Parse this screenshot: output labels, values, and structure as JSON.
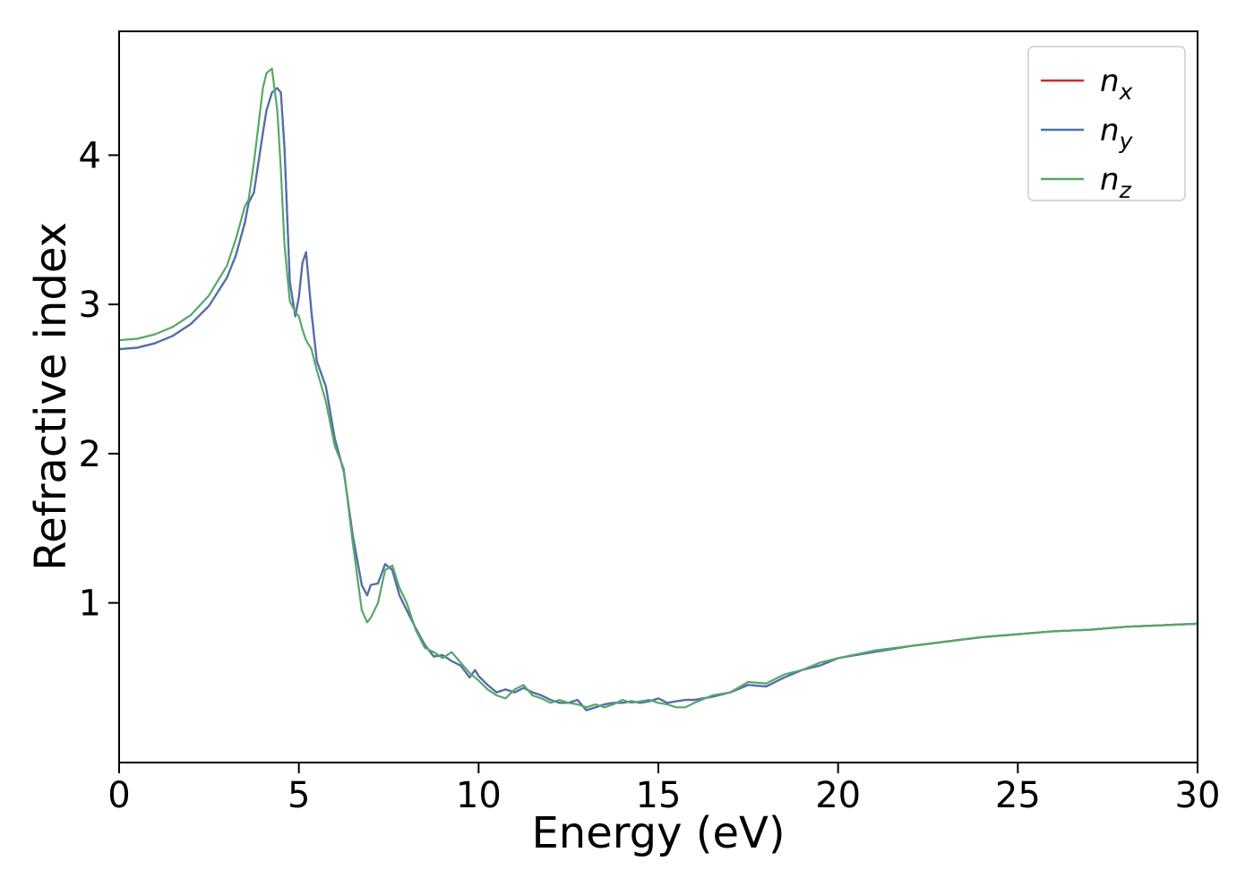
{
  "figure": {
    "background": "#ffffff",
    "spine_color": "#000000",
    "tick_label_color": "#000000"
  },
  "chart_data": {
    "type": "line",
    "title": "",
    "xlabel": "Energy (eV)",
    "ylabel": "Refractive index",
    "xlim": [
      0,
      30
    ],
    "ylim": [
      -0.07,
      4.83
    ],
    "xticks": [
      0,
      5,
      10,
      15,
      20,
      25,
      30
    ],
    "yticks": [
      1,
      2,
      3,
      4
    ],
    "grid": false,
    "legend_position": "upper right",
    "x": [
      0,
      0.5,
      1,
      1.5,
      2,
      2.5,
      3,
      3.25,
      3.5,
      3.6,
      3.75,
      4,
      4.1,
      4.25,
      4.4,
      4.5,
      4.6,
      4.75,
      4.9,
      5,
      5.1,
      5.2,
      5.35,
      5.5,
      5.75,
      6,
      6.25,
      6.5,
      6.75,
      6.9,
      7,
      7.2,
      7.4,
      7.6,
      7.8,
      8,
      8.25,
      8.5,
      8.75,
      9,
      9.25,
      9.5,
      9.75,
      9.9,
      10,
      10.25,
      10.5,
      10.75,
      11,
      11.25,
      11.5,
      11.75,
      12,
      12.25,
      12.5,
      12.75,
      13,
      13.25,
      13.5,
      13.75,
      14,
      14.25,
      14.5,
      14.75,
      15,
      15.25,
      15.5,
      15.75,
      16,
      16.5,
      17,
      17.5,
      18,
      18.5,
      19,
      19.5,
      20,
      21,
      22,
      23,
      24,
      25,
      26,
      27,
      28,
      29,
      30
    ],
    "series": [
      {
        "name": "n_x",
        "label_base": "n",
        "label_sub": "x",
        "color": "#d62728",
        "values": [
          2.7,
          2.71,
          2.74,
          2.79,
          2.87,
          2.99,
          3.18,
          3.33,
          3.55,
          3.68,
          3.75,
          4.15,
          4.3,
          4.42,
          4.45,
          4.42,
          4.05,
          3.15,
          2.92,
          3.05,
          3.28,
          3.35,
          2.95,
          2.62,
          2.45,
          2.1,
          1.88,
          1.45,
          1.12,
          1.05,
          1.12,
          1.13,
          1.26,
          1.22,
          1.05,
          0.95,
          0.83,
          0.72,
          0.64,
          0.65,
          0.61,
          0.58,
          0.5,
          0.55,
          0.51,
          0.45,
          0.4,
          0.42,
          0.4,
          0.43,
          0.4,
          0.38,
          0.35,
          0.33,
          0.33,
          0.35,
          0.28,
          0.3,
          0.32,
          0.33,
          0.33,
          0.34,
          0.33,
          0.34,
          0.36,
          0.33,
          0.34,
          0.35,
          0.35,
          0.37,
          0.4,
          0.45,
          0.44,
          0.5,
          0.55,
          0.58,
          0.63,
          0.67,
          0.71,
          0.74,
          0.77,
          0.79,
          0.81,
          0.82,
          0.84,
          0.85,
          0.86
        ]
      },
      {
        "name": "n_y",
        "label_base": "n",
        "label_sub": "y",
        "color": "#4c72b0",
        "values": [
          2.7,
          2.71,
          2.74,
          2.79,
          2.87,
          2.99,
          3.18,
          3.33,
          3.55,
          3.68,
          3.75,
          4.15,
          4.3,
          4.42,
          4.45,
          4.42,
          4.05,
          3.15,
          2.92,
          3.05,
          3.28,
          3.35,
          2.95,
          2.62,
          2.45,
          2.1,
          1.88,
          1.45,
          1.12,
          1.05,
          1.12,
          1.13,
          1.26,
          1.22,
          1.05,
          0.95,
          0.83,
          0.72,
          0.64,
          0.65,
          0.61,
          0.58,
          0.5,
          0.55,
          0.51,
          0.45,
          0.4,
          0.42,
          0.4,
          0.43,
          0.4,
          0.38,
          0.35,
          0.33,
          0.33,
          0.35,
          0.28,
          0.3,
          0.32,
          0.33,
          0.33,
          0.34,
          0.33,
          0.34,
          0.36,
          0.33,
          0.34,
          0.35,
          0.35,
          0.37,
          0.4,
          0.45,
          0.44,
          0.5,
          0.55,
          0.58,
          0.63,
          0.67,
          0.71,
          0.74,
          0.77,
          0.79,
          0.81,
          0.82,
          0.84,
          0.85,
          0.86
        ]
      },
      {
        "name": "n_z",
        "label_base": "n",
        "label_sub": "z",
        "color": "#55a868",
        "values": [
          2.76,
          2.77,
          2.8,
          2.85,
          2.93,
          3.06,
          3.26,
          3.44,
          3.66,
          3.7,
          3.95,
          4.45,
          4.55,
          4.58,
          4.3,
          3.9,
          3.4,
          3.02,
          2.95,
          2.92,
          2.83,
          2.76,
          2.7,
          2.56,
          2.35,
          2.05,
          1.9,
          1.4,
          0.95,
          0.87,
          0.9,
          1.0,
          1.22,
          1.25,
          1.1,
          1.0,
          0.82,
          0.7,
          0.67,
          0.63,
          0.67,
          0.6,
          0.53,
          0.5,
          0.48,
          0.42,
          0.38,
          0.36,
          0.42,
          0.45,
          0.38,
          0.36,
          0.33,
          0.35,
          0.33,
          0.32,
          0.3,
          0.32,
          0.3,
          0.32,
          0.35,
          0.33,
          0.34,
          0.35,
          0.33,
          0.32,
          0.3,
          0.3,
          0.33,
          0.38,
          0.4,
          0.47,
          0.46,
          0.52,
          0.55,
          0.6,
          0.63,
          0.68,
          0.71,
          0.74,
          0.77,
          0.79,
          0.81,
          0.82,
          0.84,
          0.85,
          0.86
        ]
      }
    ]
  }
}
